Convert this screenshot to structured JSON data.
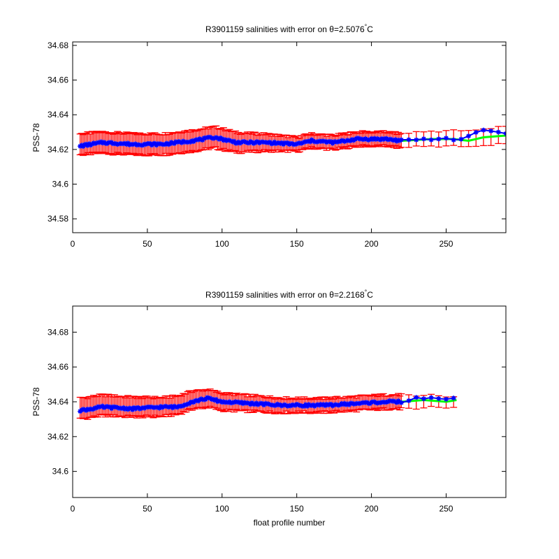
{
  "figure": {
    "background": "#ffffff"
  },
  "colors": {
    "errorbar": "#ff0000",
    "fit_line": "#00ff00",
    "measured": "#0000ff",
    "axes": "#000000"
  },
  "chart_data": [
    {
      "type": "scatter",
      "title_prefix": "R3901159 salinities with error on ",
      "title_theta": "θ=2.5076",
      "title_degree": "°",
      "title_unit": "C",
      "title": "R3901159 salinities with error on θ=2.5076°C",
      "xlabel": "",
      "ylabel": "PSS-78",
      "xlim": [
        0,
        290
      ],
      "ylim": [
        34.572,
        34.682
      ],
      "xticks": [
        0,
        50,
        100,
        150,
        200,
        250
      ],
      "yticks": [
        34.58,
        34.6,
        34.62,
        34.64,
        34.66,
        34.68
      ],
      "ytick_labels": [
        "34.58",
        "34.6",
        "34.62",
        "34.64",
        "34.66",
        "34.68"
      ],
      "series": [
        {
          "type": "errorbar",
          "key": [
            [
              5,
              34.623
            ],
            [
              20,
              34.624
            ],
            [
              40,
              34.623
            ],
            [
              60,
              34.623
            ],
            [
              80,
              34.625
            ],
            [
              95,
              34.627
            ],
            [
              100,
              34.626
            ],
            [
              110,
              34.624
            ],
            [
              130,
              34.624
            ],
            [
              150,
              34.623
            ],
            [
              160,
              34.625
            ],
            [
              175,
              34.624
            ],
            [
              190,
              34.626
            ],
            [
              210,
              34.626
            ],
            [
              220,
              34.625
            ],
            [
              240,
              34.626
            ],
            [
              260,
              34.626
            ],
            [
              275,
              34.627
            ],
            [
              290,
              34.628
            ]
          ],
          "error": [
            [
              5,
              0.006
            ],
            [
              80,
              0.006
            ],
            [
              100,
              0.006
            ],
            [
              150,
              0.004
            ],
            [
              220,
              0.004
            ],
            [
              290,
              0.005
            ]
          ]
        },
        {
          "type": "line",
          "key": [
            [
              220,
              34.625
            ],
            [
              240,
              34.626
            ],
            [
              255,
              34.626
            ],
            [
              265,
              34.625
            ],
            [
              275,
              34.627
            ],
            [
              290,
              34.628
            ]
          ]
        },
        {
          "type": "scatter",
          "key": [
            [
              5,
              34.622
            ],
            [
              20,
              34.624
            ],
            [
              40,
              34.623
            ],
            [
              60,
              34.623
            ],
            [
              80,
              34.625
            ],
            [
              95,
              34.627
            ],
            [
              100,
              34.626
            ],
            [
              110,
              34.624
            ],
            [
              130,
              34.624
            ],
            [
              150,
              34.623
            ],
            [
              160,
              34.625
            ],
            [
              175,
              34.624
            ],
            [
              190,
              34.626
            ],
            [
              210,
              34.626
            ],
            [
              220,
              34.625
            ],
            [
              240,
              34.626
            ],
            [
              260,
              34.626
            ],
            [
              275,
              34.631
            ],
            [
              290,
              34.629
            ]
          ]
        }
      ]
    },
    {
      "type": "scatter",
      "title_prefix": "R3901159 salinities with error on ",
      "title_theta": "θ=2.2168",
      "title_degree": "°",
      "title_unit": "C",
      "title": "R3901159 salinities with error on θ=2.2168°C",
      "xlabel": "float profile number",
      "ylabel": "PSS-78",
      "xlim": [
        0,
        290
      ],
      "ylim": [
        34.585,
        34.695
      ],
      "xticks": [
        0,
        50,
        100,
        150,
        200,
        250
      ],
      "yticks": [
        34.6,
        34.62,
        34.64,
        34.66,
        34.68
      ],
      "ytick_labels": [
        "34.6",
        "34.62",
        "34.64",
        "34.66",
        "34.68"
      ],
      "series": [
        {
          "type": "errorbar",
          "key": [
            [
              5,
              34.636
            ],
            [
              20,
              34.638
            ],
            [
              40,
              34.637
            ],
            [
              60,
              34.637
            ],
            [
              70,
              34.638
            ],
            [
              80,
              34.641
            ],
            [
              90,
              34.642
            ],
            [
              100,
              34.64
            ],
            [
              120,
              34.639
            ],
            [
              140,
              34.638
            ],
            [
              150,
              34.638
            ],
            [
              170,
              34.638
            ],
            [
              190,
              34.639
            ],
            [
              210,
              34.64
            ],
            [
              220,
              34.64
            ],
            [
              240,
              34.64
            ],
            [
              257,
              34.64
            ]
          ],
          "error": [
            [
              5,
              0.006
            ],
            [
              90,
              0.005
            ],
            [
              150,
              0.004
            ],
            [
              220,
              0.004
            ],
            [
              257,
              0.003
            ]
          ]
        },
        {
          "type": "line",
          "key": [
            [
              220,
              34.64
            ],
            [
              235,
              34.641
            ],
            [
              250,
              34.64
            ],
            [
              257,
              34.641
            ]
          ]
        },
        {
          "type": "scatter",
          "key": [
            [
              5,
              34.635
            ],
            [
              20,
              34.637
            ],
            [
              40,
              34.636
            ],
            [
              60,
              34.637
            ],
            [
              70,
              34.637
            ],
            [
              80,
              34.64
            ],
            [
              90,
              34.642
            ],
            [
              100,
              34.64
            ],
            [
              120,
              34.639
            ],
            [
              140,
              34.638
            ],
            [
              150,
              34.638
            ],
            [
              170,
              34.638
            ],
            [
              190,
              34.639
            ],
            [
              210,
              34.64
            ],
            [
              220,
              34.64
            ],
            [
              230,
              34.642
            ],
            [
              240,
              34.642
            ],
            [
              250,
              34.641
            ],
            [
              257,
              34.642
            ]
          ]
        }
      ]
    }
  ]
}
